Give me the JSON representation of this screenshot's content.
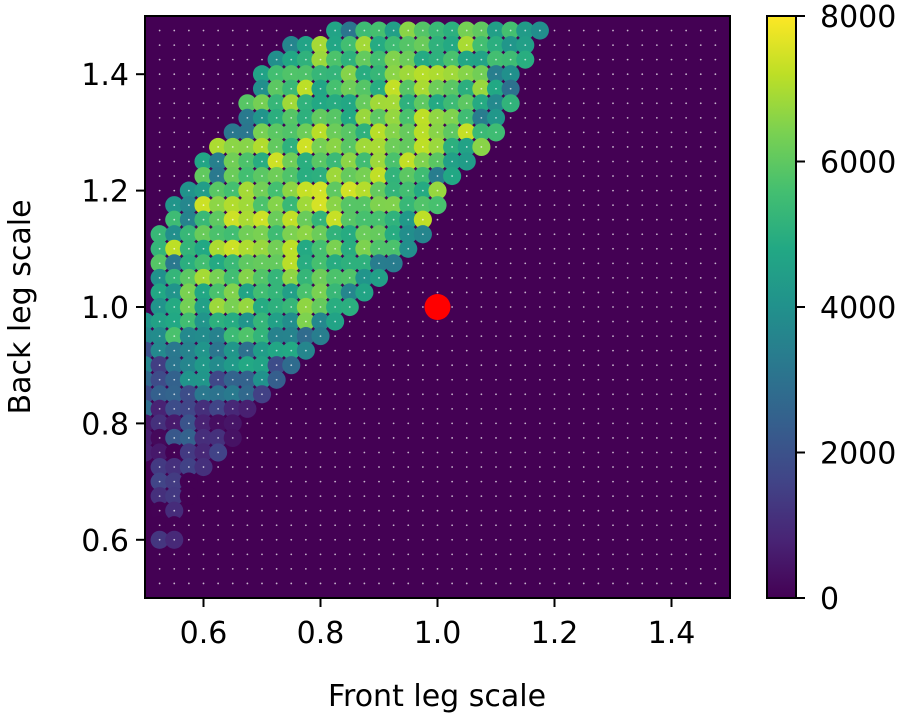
{
  "chart_data": {
    "type": "heatmap",
    "title": "",
    "xlabel": "Front leg scale",
    "ylabel": "Back leg scale",
    "xlim": [
      0.5,
      1.5
    ],
    "ylim": [
      0.5,
      1.5
    ],
    "x_ticks": [
      0.6,
      0.8,
      1.0,
      1.2,
      1.4
    ],
    "x_tick_labels": [
      "0.6",
      "0.8",
      "1.0",
      "1.2",
      "1.4"
    ],
    "y_ticks": [
      0.6,
      0.8,
      1.0,
      1.2,
      1.4
    ],
    "y_tick_labels": [
      "0.6",
      "0.8",
      "1.0",
      "1.2",
      "1.4"
    ],
    "grid": false,
    "colormap": "viridis",
    "colorbar": {
      "min": 0,
      "max": 8000,
      "ticks": [
        0,
        2000,
        4000,
        6000,
        8000
      ],
      "tick_labels": [
        "0",
        "2000",
        "4000",
        "6000",
        "8000"
      ]
    },
    "grid_resolution": 0.025,
    "notes_on_values": "Each grid point is a sample; color = value. Points outside the listed regions are near 0.",
    "high_region_rows": [
      {
        "y": 1.475,
        "x_from": 0.825,
        "x_to": 1.175,
        "value": 5600
      },
      {
        "y": 1.45,
        "x_from": 0.75,
        "x_to": 1.15,
        "value": 5700
      },
      {
        "y": 1.425,
        "x_from": 0.725,
        "x_to": 1.15,
        "value": 5800
      },
      {
        "y": 1.4,
        "x_from": 0.7,
        "x_to": 1.125,
        "value": 5900
      },
      {
        "y": 1.375,
        "x_from": 0.7,
        "x_to": 1.125,
        "value": 6000
      },
      {
        "y": 1.35,
        "x_from": 0.675,
        "x_to": 1.125,
        "value": 6000
      },
      {
        "y": 1.325,
        "x_from": 0.675,
        "x_to": 1.1,
        "value": 6100
      },
      {
        "y": 1.3,
        "x_from": 0.65,
        "x_to": 1.1,
        "value": 6100
      },
      {
        "y": 1.275,
        "x_from": 0.625,
        "x_to": 1.075,
        "value": 6200
      },
      {
        "y": 1.25,
        "x_from": 0.6,
        "x_to": 1.05,
        "value": 6200
      },
      {
        "y": 1.225,
        "x_from": 0.6,
        "x_to": 1.025,
        "value": 6200
      },
      {
        "y": 1.2,
        "x_from": 0.575,
        "x_to": 1.0,
        "value": 6300
      },
      {
        "y": 1.175,
        "x_from": 0.55,
        "x_to": 1.0,
        "value": 6300
      },
      {
        "y": 1.15,
        "x_from": 0.55,
        "x_to": 0.975,
        "value": 6300
      },
      {
        "y": 1.125,
        "x_from": 0.525,
        "x_to": 0.975,
        "value": 6200
      },
      {
        "y": 1.1,
        "x_from": 0.525,
        "x_to": 0.95,
        "value": 6100
      },
      {
        "y": 1.075,
        "x_from": 0.525,
        "x_to": 0.925,
        "value": 6000
      },
      {
        "y": 1.05,
        "x_from": 0.525,
        "x_to": 0.9,
        "value": 5900
      },
      {
        "y": 1.025,
        "x_from": 0.525,
        "x_to": 0.875,
        "value": 5800
      },
      {
        "y": 1.0,
        "x_from": 0.525,
        "x_to": 0.85,
        "value": 5600
      },
      {
        "y": 0.975,
        "x_from": 0.5,
        "x_to": 0.825,
        "value": 5200
      },
      {
        "y": 0.95,
        "x_from": 0.5,
        "x_to": 0.8,
        "value": 4800
      },
      {
        "y": 0.925,
        "x_from": 0.5,
        "x_to": 0.775,
        "value": 4200
      },
      {
        "y": 0.9,
        "x_from": 0.5,
        "x_to": 0.75,
        "value": 3600
      },
      {
        "y": 0.875,
        "x_from": 0.5,
        "x_to": 0.725,
        "value": 3000
      },
      {
        "y": 0.85,
        "x_from": 0.5,
        "x_to": 0.7,
        "value": 2400
      },
      {
        "y": 0.825,
        "x_from": 0.5,
        "x_to": 0.675,
        "value": 2000
      },
      {
        "y": 0.8,
        "x_from": 0.5,
        "x_to": 0.65,
        "value": 1600
      },
      {
        "y": 0.775,
        "x_from": 0.5,
        "x_to": 0.65,
        "value": 1300
      },
      {
        "y": 0.75,
        "x_from": 0.5,
        "x_to": 0.625,
        "value": 1000
      },
      {
        "y": 0.725,
        "x_from": 0.525,
        "x_to": 0.6,
        "value": 900
      },
      {
        "y": 0.7,
        "x_from": 0.525,
        "x_to": 0.575,
        "value": 800
      },
      {
        "y": 0.675,
        "x_from": 0.525,
        "x_to": 0.575,
        "value": 700
      },
      {
        "y": 0.65,
        "x_from": 0.525,
        "x_to": 0.55,
        "value": 600
      },
      {
        "y": 0.625,
        "x_from": 0.525,
        "x_to": 0.55,
        "value": 500
      },
      {
        "y": 0.6,
        "x_from": 0.525,
        "x_to": 0.55,
        "value": 400
      }
    ],
    "highlight_point": {
      "x": 1.0,
      "y": 1.0,
      "color": "#ff0000"
    }
  },
  "colors": {
    "background_low": "#440154",
    "highlight": "#ff0000"
  }
}
